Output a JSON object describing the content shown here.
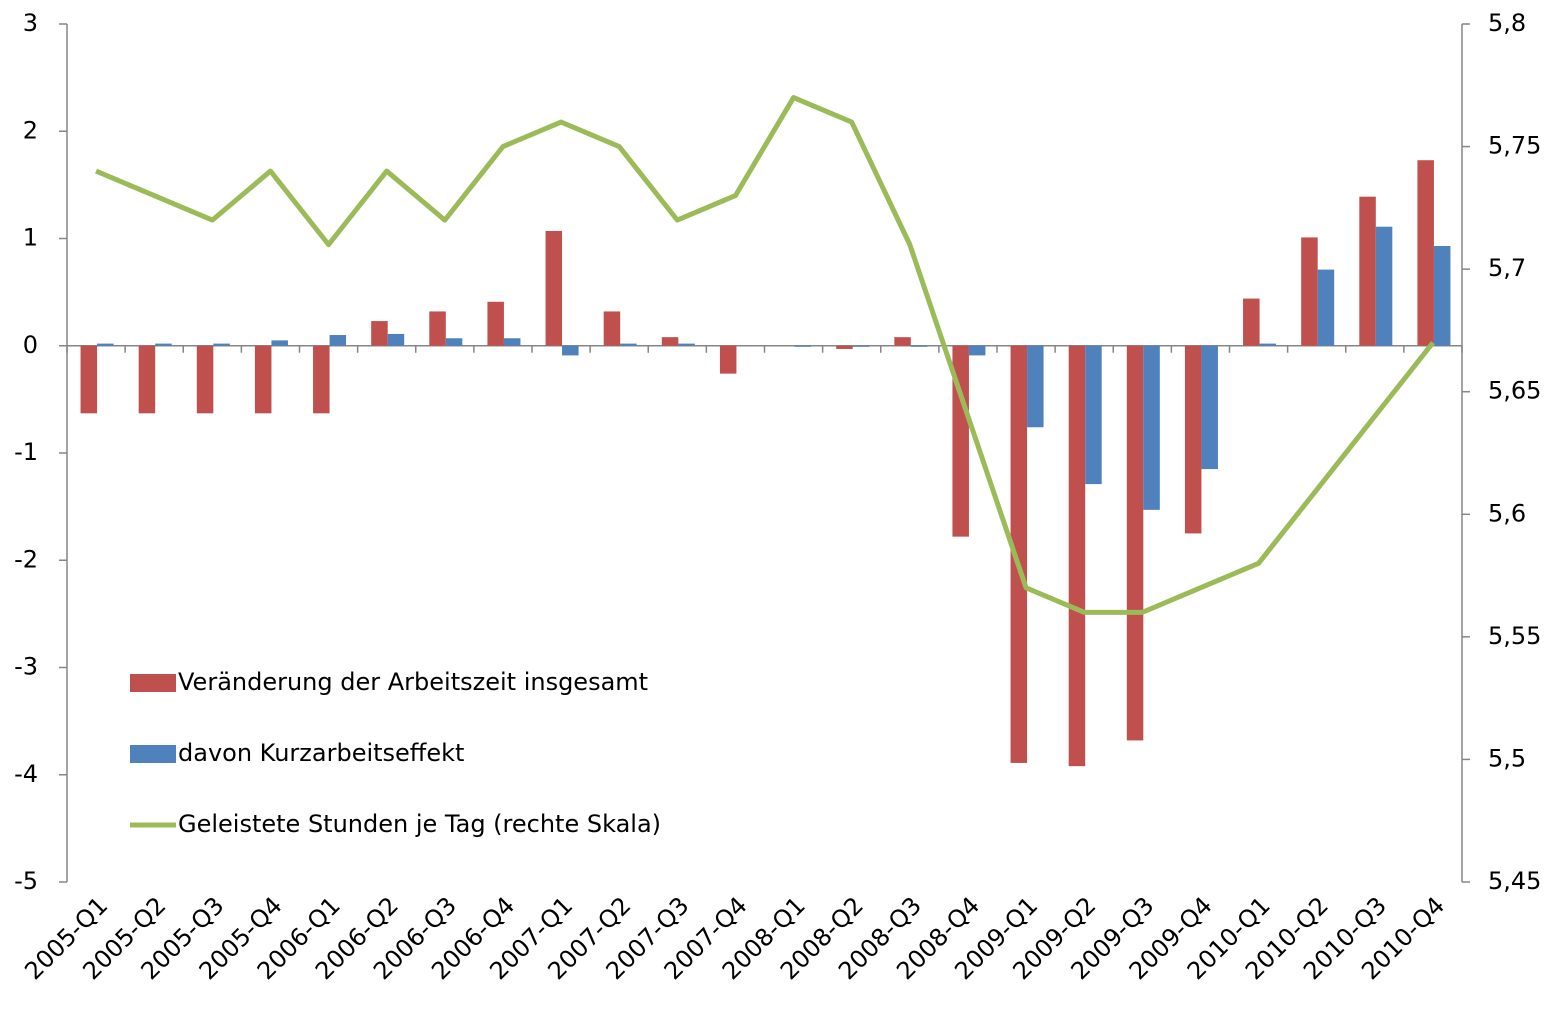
{
  "chart_data": {
    "type": "bar",
    "categories": [
      "2005-Q1",
      "2005-Q2",
      "2005-Q3",
      "2005-Q4",
      "2006-Q1",
      "2006-Q2",
      "2006-Q3",
      "2006-Q4",
      "2007-Q1",
      "2007-Q2",
      "2007-Q3",
      "2007-Q4",
      "2008-Q1",
      "2008-Q2",
      "2008-Q3",
      "2008-Q4",
      "2009-Q1",
      "2009-Q2",
      "2009-Q3",
      "2009-Q4",
      "2010-Q1",
      "2010-Q2",
      "2010-Q3",
      "2010-Q4"
    ],
    "series": [
      {
        "name": "Veränderung der Arbeitszeit insgesamt",
        "color": "#c0504d",
        "type": "bar",
        "values": [
          -0.63,
          -0.63,
          -0.63,
          -0.63,
          -0.63,
          0.23,
          0.32,
          0.41,
          1.07,
          0.32,
          0.08,
          -0.26,
          0,
          -0.03,
          0.08,
          -1.78,
          -3.89,
          -3.92,
          -3.68,
          -1.75,
          0.44,
          1.01,
          1.39,
          1.73
        ]
      },
      {
        "name": "davon Kurzarbeitseffekt",
        "color": "#4f81bd",
        "type": "bar",
        "values": [
          0.02,
          0.02,
          0.02,
          0.05,
          0.1,
          0.11,
          0.07,
          0.07,
          -0.09,
          0.02,
          0.02,
          0,
          -0.01,
          -0.01,
          -0.01,
          -0.09,
          -0.76,
          -1.29,
          -1.53,
          -1.15,
          0.02,
          0.71,
          1.11,
          0.93
        ]
      },
      {
        "name": "Geleistete Stunden je Tag (rechte Skala)",
        "color": "#9bbb59",
        "type": "line",
        "axis": "y2",
        "values": [
          5.74,
          5.73,
          5.72,
          5.74,
          5.71,
          5.74,
          5.72,
          5.75,
          5.76,
          5.75,
          5.72,
          5.73,
          5.77,
          5.76,
          5.71,
          5.64,
          5.57,
          5.56,
          5.56,
          5.57,
          5.58,
          5.61,
          5.64,
          5.67
        ]
      }
    ],
    "ylim": [
      -5,
      3
    ],
    "yticks": [
      -5,
      -4,
      -3,
      -2,
      -1,
      0,
      1,
      2,
      3
    ],
    "y2lim": [
      5.45,
      5.8
    ],
    "y2ticks": [
      {
        "value": 5.45,
        "label": "5,45"
      },
      {
        "value": 5.5,
        "label": "5,5"
      },
      {
        "value": 5.55,
        "label": "5,55"
      },
      {
        "value": 5.6,
        "label": "5,6"
      },
      {
        "value": 5.65,
        "label": "5,65"
      },
      {
        "value": 5.7,
        "label": "5,7"
      },
      {
        "value": 5.75,
        "label": "5,75"
      },
      {
        "value": 5.8,
        "label": "5,8"
      }
    ],
    "grid": false,
    "legend": "lower left"
  }
}
